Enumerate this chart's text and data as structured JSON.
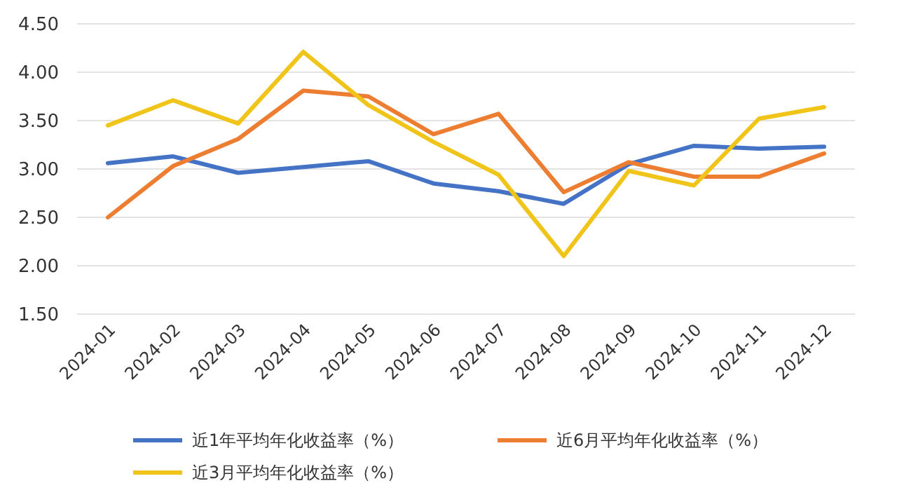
{
  "chart_data": {
    "type": "line",
    "categories": [
      "2024-01",
      "2024-02",
      "2024-03",
      "2024-04",
      "2024-05",
      "2024-06",
      "2024-07",
      "2024-08",
      "2024-09",
      "2024-10",
      "2024-11",
      "2024-12"
    ],
    "series": [
      {
        "name": "近1年平均年化收益率（%）",
        "color": "#4472c4",
        "values": [
          3.06,
          3.13,
          2.96,
          3.02,
          3.08,
          2.85,
          2.77,
          2.64,
          3.05,
          3.24,
          3.21,
          3.23
        ]
      },
      {
        "name": "近6月平均年化收益率（%）",
        "color": "#ed7d31",
        "values": [
          2.5,
          3.03,
          3.31,
          3.81,
          3.75,
          3.36,
          3.57,
          2.76,
          3.07,
          2.92,
          2.92,
          3.16
        ]
      },
      {
        "name": "近3月平均年化收益率（%）",
        "color": "#f0c419",
        "values": [
          3.45,
          3.71,
          3.47,
          4.21,
          3.66,
          3.28,
          2.94,
          2.1,
          2.98,
          2.83,
          3.52,
          3.64
        ]
      }
    ],
    "ylim": [
      1.5,
      4.5
    ],
    "yticks": [
      {
        "value": 1.5,
        "label": "1.50"
      },
      {
        "value": 2,
        "label": "2.00"
      },
      {
        "value": 2.5,
        "label": "2.50"
      },
      {
        "value": 3,
        "label": "3.00"
      },
      {
        "value": 3.5,
        "label": "3.50"
      },
      {
        "value": 4,
        "label": "4.00"
      },
      {
        "value": 4.5,
        "label": "4.50"
      }
    ],
    "grid": "y",
    "legend": "bottom",
    "marker": "none",
    "line_style": "solid"
  }
}
